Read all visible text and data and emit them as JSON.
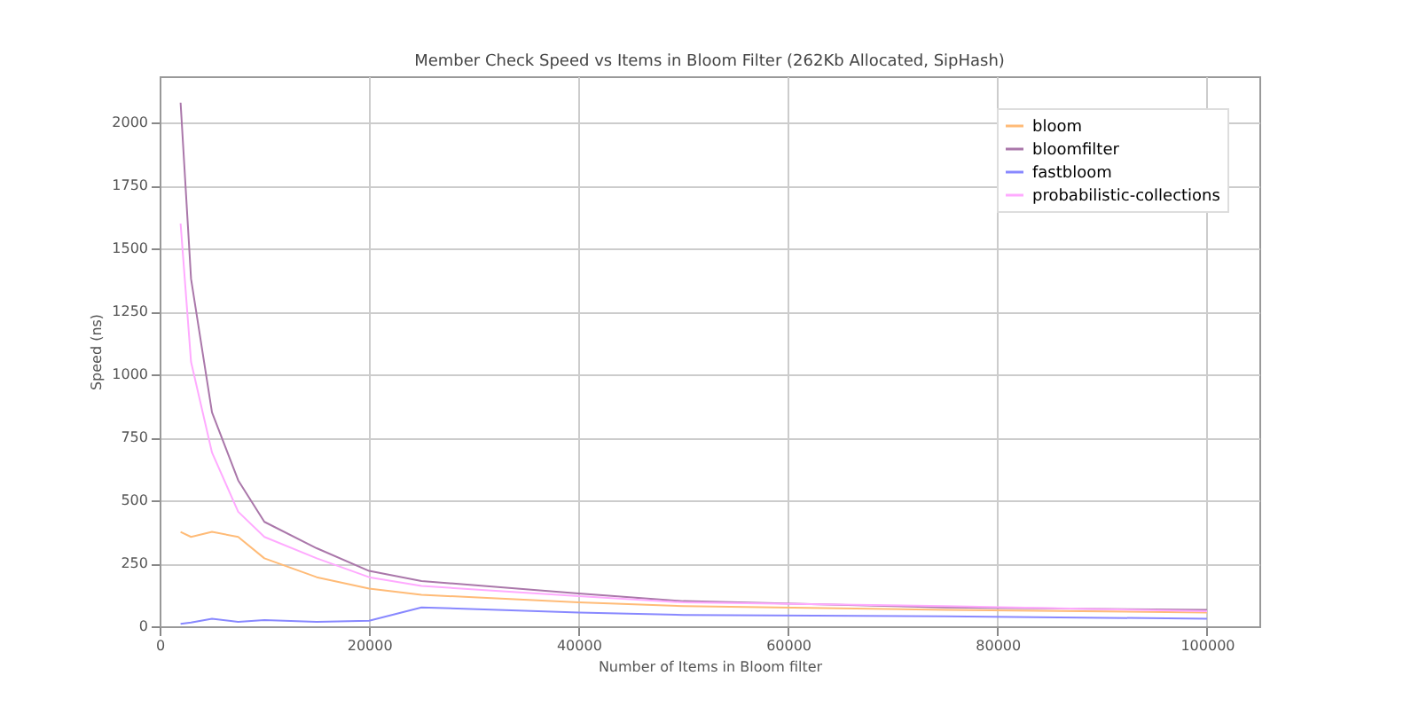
{
  "chart_data": {
    "type": "line",
    "title": "Member Check Speed vs Items in Bloom Filter (262Kb Allocated, SipHash)",
    "xlabel": "Number of Items in Bloom filter",
    "ylabel": "Speed (ns)",
    "x": [
      2000,
      3000,
      5000,
      7500,
      10000,
      15000,
      20000,
      25000,
      40000,
      50000,
      75000,
      100000
    ],
    "series": [
      {
        "name": "bloom",
        "color": "#ffbb77",
        "values": [
          375,
          355,
          375,
          355,
          270,
          195,
          150,
          125,
          95,
          80,
          65,
          55
        ]
      },
      {
        "name": "bloomfilter",
        "color": "#aa77aa",
        "values": [
          2080,
          1380,
          850,
          580,
          415,
          310,
          220,
          180,
          130,
          100,
          75,
          65
        ]
      },
      {
        "name": "fastbloom",
        "color": "#8888ff",
        "values": [
          10,
          15,
          30,
          18,
          25,
          18,
          22,
          75,
          55,
          45,
          40,
          30
        ]
      },
      {
        "name": "probabilistic-collections",
        "color": "#ffaaff",
        "values": [
          1600,
          1050,
          690,
          455,
          355,
          270,
          195,
          160,
          120,
          95,
          80,
          60
        ]
      }
    ],
    "xlim": [
      0,
      105000
    ],
    "ylim": [
      0,
      2185
    ],
    "xticks": [
      0,
      20000,
      40000,
      60000,
      80000,
      100000
    ],
    "yticks": [
      0,
      250,
      500,
      750,
      1000,
      1250,
      1500,
      1750,
      2000
    ],
    "grid": true,
    "legend": "top right"
  }
}
